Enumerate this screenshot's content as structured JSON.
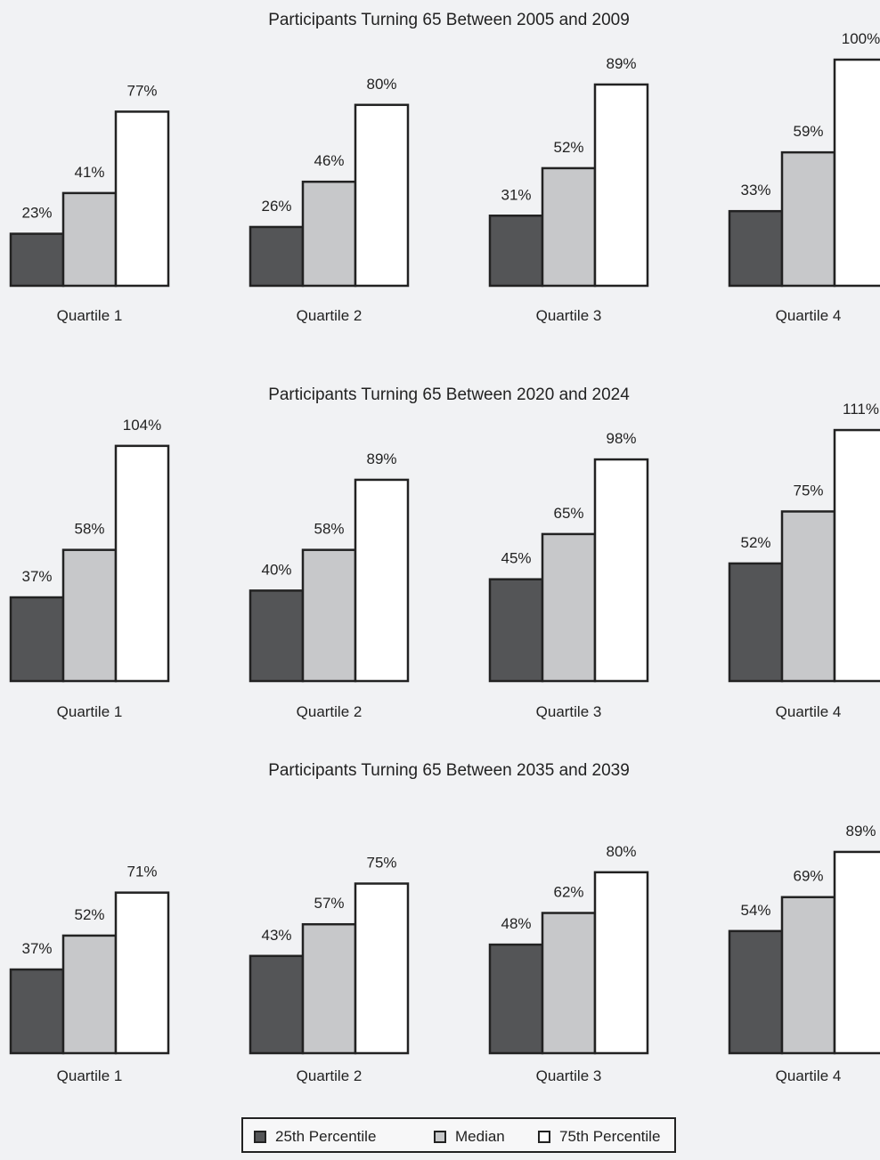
{
  "colors": {
    "p25": "#545557",
    "median": "#c7c8ca",
    "p75": "#ffffff",
    "stroke": "#222222",
    "background": "#f1f2f4"
  },
  "legend": [
    {
      "label": "25th Percentile",
      "color": "#545557"
    },
    {
      "label": "Median",
      "color": "#c7c8ca"
    },
    {
      "label": "75th Percentile",
      "color": "#ffffff"
    }
  ],
  "chart_data": [
    {
      "type": "bar",
      "title": "Participants Turning 65 Between 2005 and 2009",
      "categories": [
        "Quartile 1",
        "Quartile 2",
        "Quartile 3",
        "Quartile 4"
      ],
      "series": [
        {
          "name": "25th Percentile",
          "values": [
            23,
            26,
            31,
            33
          ],
          "labels": [
            "23%",
            "26%",
            "31%",
            "33%"
          ]
        },
        {
          "name": "Median",
          "values": [
            41,
            46,
            52,
            59
          ],
          "labels": [
            "41%",
            "46%",
            "52%",
            "59%"
          ]
        },
        {
          "name": "75th Percentile",
          "values": [
            77,
            80,
            89,
            100
          ],
          "labels": [
            "77%",
            "80%",
            "89%",
            "100%"
          ]
        }
      ],
      "grid": false,
      "legend_position": "bottom"
    },
    {
      "type": "bar",
      "title": "Participants Turning 65 Between 2020 and 2024",
      "categories": [
        "Quartile 1",
        "Quartile 2",
        "Quartile 3",
        "Quartile 4"
      ],
      "series": [
        {
          "name": "25th Percentile",
          "values": [
            37,
            40,
            45,
            52
          ],
          "labels": [
            "37%",
            "40%",
            "45%",
            "52%"
          ]
        },
        {
          "name": "Median",
          "values": [
            58,
            58,
            65,
            75
          ],
          "labels": [
            "58%",
            "58%",
            "65%",
            "75%"
          ]
        },
        {
          "name": "75th Percentile",
          "values": [
            104,
            89,
            98,
            111
          ],
          "labels": [
            "104%",
            "89%",
            "98%",
            "111%"
          ]
        }
      ],
      "grid": false,
      "legend_position": "bottom"
    },
    {
      "type": "bar",
      "title": "Participants Turning 65 Between 2035 and 2039",
      "categories": [
        "Quartile 1",
        "Quartile 2",
        "Quartile 3",
        "Quartile 4"
      ],
      "series": [
        {
          "name": "25th Percentile",
          "values": [
            37,
            43,
            48,
            54
          ],
          "labels": [
            "37%",
            "43%",
            "48%",
            "54%"
          ]
        },
        {
          "name": "Median",
          "values": [
            52,
            57,
            62,
            69
          ],
          "labels": [
            "52%",
            "57%",
            "62%",
            "69%"
          ]
        },
        {
          "name": "75th Percentile",
          "values": [
            71,
            75,
            80,
            89
          ],
          "labels": [
            "71%",
            "75%",
            "80%",
            "89%"
          ]
        }
      ],
      "grid": false,
      "legend_position": "bottom"
    }
  ]
}
